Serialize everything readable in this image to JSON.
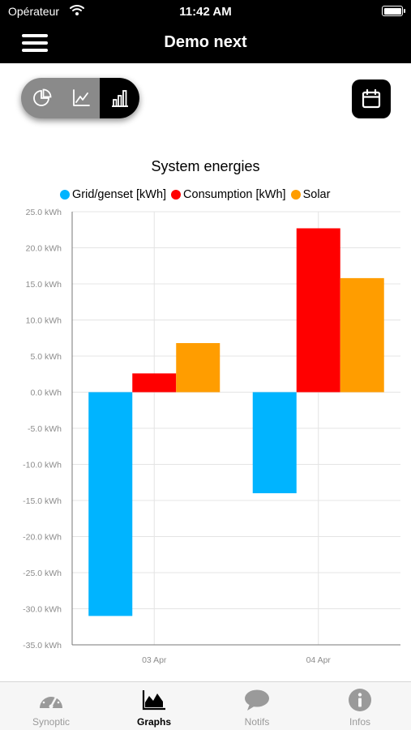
{
  "status_bar": {
    "carrier": "Opérateur",
    "time": "11:42 AM"
  },
  "nav": {
    "title": "Demo next"
  },
  "chart_type_toggle": {
    "options": [
      "pie-chart-icon",
      "line-chart-icon",
      "bar-chart-icon"
    ],
    "selected": "bar-chart-icon"
  },
  "chart_data": {
    "type": "bar",
    "title": "System energies",
    "categories": [
      "03 Apr",
      "04 Apr"
    ],
    "series": [
      {
        "name": "Grid/genset [kWh]",
        "color": "#00b4ff",
        "values": [
          -31.0,
          -14.0
        ]
      },
      {
        "name": "Consumption [kWh]",
        "color": "#ff0000",
        "values": [
          2.6,
          22.7
        ]
      },
      {
        "name": "Solar",
        "color": "#ff9d00",
        "values": [
          6.8,
          15.8
        ]
      }
    ],
    "ylim": [
      -35,
      25
    ],
    "yticks": [
      "25.0 kWh",
      "20.0 kWh",
      "15.0 kWh",
      "10.0 kWh",
      "5.0 kWh",
      "0.0 kWh",
      "-5.0 kWh",
      "-10.0 kWh",
      "-15.0 kWh",
      "-20.0 kWh",
      "-25.0 kWh",
      "-30.0 kWh",
      "-35.0 kWh"
    ],
    "ytick_values": [
      25,
      20,
      15,
      10,
      5,
      0,
      -5,
      -10,
      -15,
      -20,
      -25,
      -30,
      -35
    ],
    "grid": true,
    "legend_position": "top"
  },
  "tabs": [
    {
      "label": "Synoptic",
      "icon": "gauge-icon",
      "active": false
    },
    {
      "label": "Graphs",
      "icon": "area-chart-icon",
      "active": true
    },
    {
      "label": "Notifs",
      "icon": "speech-bubble-icon",
      "active": false
    },
    {
      "label": "Infos",
      "icon": "info-icon",
      "active": false
    }
  ]
}
